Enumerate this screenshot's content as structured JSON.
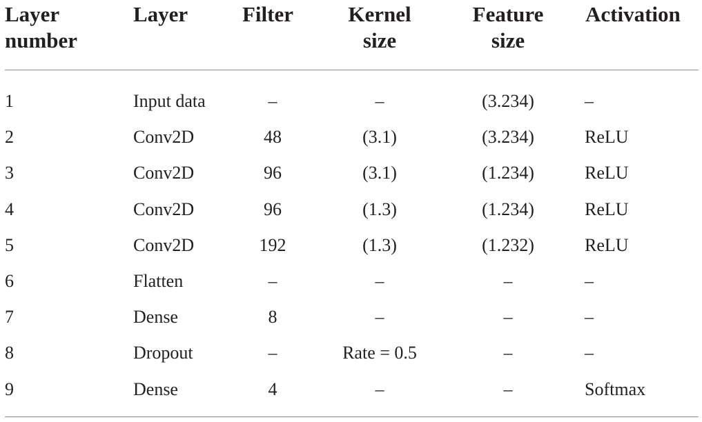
{
  "headers": {
    "layer_number": "Layer number",
    "layer_number_l1": "Layer",
    "layer_number_l2": "number",
    "layer": "Layer",
    "filter": "Filter",
    "kernel_l1": "Kernel",
    "kernel_l2": "size",
    "feature_l1": "Feature",
    "feature_l2": "size",
    "activation": "Activation"
  },
  "rows": [
    {
      "num": "1",
      "layer": "Input data",
      "filter": "–",
      "kernel": "–",
      "feature": "(3.234)",
      "activation": "–"
    },
    {
      "num": "2",
      "layer": "Conv2D",
      "filter": "48",
      "kernel": "(3.1)",
      "feature": "(3.234)",
      "activation": "ReLU"
    },
    {
      "num": "3",
      "layer": "Conv2D",
      "filter": "96",
      "kernel": "(3.1)",
      "feature": "(1.234)",
      "activation": "ReLU"
    },
    {
      "num": "4",
      "layer": "Conv2D",
      "filter": "96",
      "kernel": "(1.3)",
      "feature": "(1.234)",
      "activation": "ReLU"
    },
    {
      "num": "5",
      "layer": "Conv2D",
      "filter": "192",
      "kernel": "(1.3)",
      "feature": "(1.232)",
      "activation": "ReLU"
    },
    {
      "num": "6",
      "layer": "Flatten",
      "filter": "–",
      "kernel": "–",
      "feature": "–",
      "activation": "–"
    },
    {
      "num": "7",
      "layer": "Dense",
      "filter": "8",
      "kernel": "–",
      "feature": "–",
      "activation": "–"
    },
    {
      "num": "8",
      "layer": "Dropout",
      "filter": "–",
      "kernel": "Rate = 0.5",
      "feature": "–",
      "activation": "–"
    },
    {
      "num": "9",
      "layer": "Dense",
      "filter": "4",
      "kernel": "–",
      "feature": "–",
      "activation": "Softmax"
    }
  ]
}
